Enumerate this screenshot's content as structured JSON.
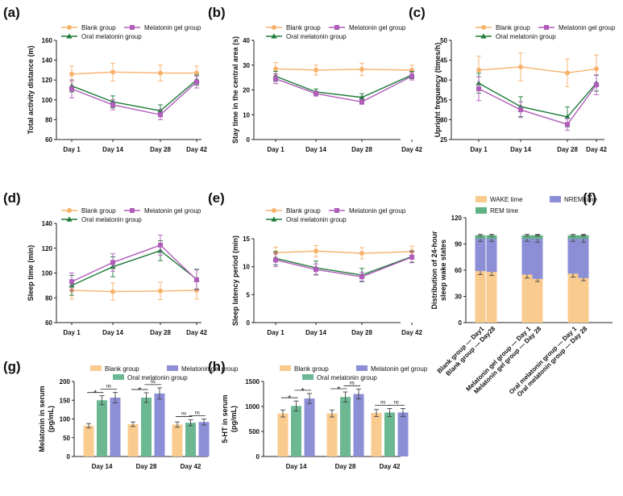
{
  "colors": {
    "blank": "#f6b26b",
    "gel": "#b05cba",
    "oral": "#1e7b3a",
    "wake": "#f9cb8f",
    "nrem": "#8c8fd6",
    "rem": "#62b285",
    "bar_blank": "#f9cb8f",
    "bar_oral": "#6cb893",
    "bar_gel": "#8c8fd6",
    "err": "#444444"
  },
  "chart_data": [
    {
      "panel": "(a)",
      "type": "line",
      "ylabel": "Total activity distance (m)",
      "categories": [
        "Day 1",
        "Day 14",
        "Day 28",
        "Day 42"
      ],
      "ylim": [
        60,
        160
      ],
      "yticks": [
        60,
        80,
        100,
        120,
        140,
        160
      ],
      "legend": [
        "Blank group",
        "Melatonin gel group",
        "Oral melatonin group"
      ],
      "series": [
        {
          "name": "Blank group",
          "key": "blank",
          "marker": "circle",
          "values": [
            126,
            128,
            127,
            127
          ],
          "errors": [
            8,
            9,
            8,
            7
          ]
        },
        {
          "name": "Oral melatonin group",
          "key": "oral",
          "marker": "triangle",
          "values": [
            114,
            98,
            89,
            120
          ],
          "errors": [
            6,
            6,
            6,
            5
          ]
        },
        {
          "name": "Melatonin gel group",
          "key": "gel",
          "marker": "square",
          "values": [
            111,
            95,
            85,
            118
          ],
          "errors": [
            9,
            5,
            5,
            6
          ]
        }
      ]
    },
    {
      "panel": "(b)",
      "type": "line",
      "ylabel": "Stay time in the central area (s)",
      "categories": [
        "Day 1",
        "Day 14",
        "Day 28",
        "Day 42"
      ],
      "ylim": [
        0,
        40
      ],
      "yticks": [
        0,
        10,
        20,
        30,
        40
      ],
      "legend": [
        "Blank group",
        "Melatonin gel group",
        "Oral melatonin group"
      ],
      "series": [
        {
          "name": "Blank group",
          "key": "blank",
          "marker": "circle",
          "values": [
            28.5,
            28,
            28.3,
            28
          ],
          "errors": [
            2.5,
            2,
            2.5,
            2
          ]
        },
        {
          "name": "Oral melatonin group",
          "key": "oral",
          "marker": "triangle",
          "values": [
            25.5,
            19.2,
            17,
            26
          ],
          "errors": [
            2,
            1.2,
            1.5,
            1.5
          ]
        },
        {
          "name": "Melatonin gel group",
          "key": "gel",
          "marker": "square",
          "values": [
            24.5,
            18.5,
            15.2,
            25.5
          ],
          "errors": [
            2,
            1,
            1,
            1.5
          ]
        }
      ]
    },
    {
      "panel": "(c)",
      "type": "line",
      "ylabel": "Upright frequency (times/h)",
      "categories": [
        "Day 1",
        "Day 14",
        "Day 28",
        "Day 42"
      ],
      "ylim": [
        25,
        50
      ],
      "yticks": [
        25,
        30,
        35,
        40,
        45,
        50
      ],
      "legend": [
        "Blank group",
        "Melatonin gel group",
        "Oral melatonin group"
      ],
      "series": [
        {
          "name": "Blank group",
          "key": "blank",
          "marker": "circle",
          "values": [
            42.5,
            43.3,
            41.8,
            42.8
          ],
          "errors": [
            3.5,
            3.5,
            3.5,
            3.5
          ]
        },
        {
          "name": "Oral melatonin group",
          "key": "oral",
          "marker": "triangle",
          "values": [
            39.2,
            33.3,
            30.7,
            39.2
          ],
          "errors": [
            2.5,
            2.5,
            2.5,
            2
          ]
        },
        {
          "name": "Melatonin gel group",
          "key": "gel",
          "marker": "square",
          "values": [
            37.8,
            32.5,
            28.8,
            38.8
          ],
          "errors": [
            3,
            2,
            1.5,
            2.5
          ]
        }
      ]
    },
    {
      "panel": "(d)",
      "type": "line",
      "ylabel": "Sleep time (min)",
      "categories": [
        "Day 1",
        "Day 14",
        "Day 28",
        "Day 42"
      ],
      "ylim": [
        60,
        140
      ],
      "yticks": [
        60,
        80,
        100,
        120,
        140
      ],
      "legend": [
        "Blank group",
        "Melatonin gel group",
        "Oral melatonin group"
      ],
      "series": [
        {
          "name": "Blank group",
          "key": "blank",
          "marker": "circle",
          "values": [
            86,
            85,
            85.5,
            86
          ],
          "errors": [
            7,
            7,
            7,
            7
          ]
        },
        {
          "name": "Oral melatonin group",
          "key": "oral",
          "marker": "triangle",
          "values": [
            90,
            105,
            118,
            95
          ],
          "errors": [
            8,
            8,
            8,
            8
          ]
        },
        {
          "name": "Melatonin gel group",
          "key": "gel",
          "marker": "square",
          "values": [
            93,
            108.5,
            122.5,
            94.5
          ],
          "errors": [
            7,
            7,
            8,
            8
          ]
        }
      ]
    },
    {
      "panel": "(e)",
      "type": "line",
      "ylabel": "Sleep latency period (min)",
      "categories": [
        "Day 1",
        "Day 14",
        "Day 28",
        "Day 42"
      ],
      "ylim": [
        0,
        15
      ],
      "yticks": [
        0,
        5,
        10,
        15
      ],
      "legend": [
        "Blank group",
        "Melatonin gel group",
        "Oral melatonin group"
      ],
      "series": [
        {
          "name": "Blank group",
          "key": "blank",
          "marker": "circle",
          "values": [
            12.5,
            12.8,
            12.4,
            12.7
          ],
          "errors": [
            1,
            1,
            1,
            1
          ]
        },
        {
          "name": "Oral melatonin group",
          "key": "oral",
          "marker": "triangle",
          "values": [
            11.5,
            9.8,
            8.5,
            11.8
          ],
          "errors": [
            1.2,
            1.2,
            1.2,
            1
          ]
        },
        {
          "name": "Melatonin gel group",
          "key": "gel",
          "marker": "square",
          "values": [
            11.2,
            9.5,
            8.2,
            11.7
          ],
          "errors": [
            1.2,
            1,
            0.8,
            1
          ]
        }
      ]
    },
    {
      "panel": "(f)",
      "type": "stacked-bar",
      "ylabel_lines": [
        "Distribution of 24-hour",
        "sleep wake states"
      ],
      "categories": [
        "Blank group — Day1",
        "Blank group — Day28",
        "Melatonin gel group — Day 1",
        "Melatonin gel group — Day 28",
        "Oral melatonin group — Day 1",
        "Oral melatonin group — Day 28"
      ],
      "ylim": [
        0,
        120
      ],
      "yticks": [
        0,
        30,
        60,
        90,
        120
      ],
      "legend": [
        "WAKE time",
        "NREM time",
        "REM time"
      ],
      "series": [
        {
          "name": "WAKE time",
          "key": "wake",
          "values": [
            59,
            58,
            55,
            50,
            56,
            51
          ],
          "errors": [
            4,
            4,
            4,
            3,
            4,
            3
          ]
        },
        {
          "name": "NREM time",
          "key": "nrem",
          "values": [
            37,
            38,
            41,
            46,
            40,
            45
          ],
          "errors": [
            3,
            3,
            3,
            4,
            3,
            4
          ]
        },
        {
          "name": "REM time",
          "key": "rem",
          "values": [
            4,
            4,
            4,
            4,
            4,
            4
          ],
          "errors": [
            1,
            1,
            1,
            1,
            1,
            1
          ]
        }
      ]
    },
    {
      "panel": "(g)",
      "type": "grouped-bar",
      "ylabel_lines": [
        "Melatonin in serum",
        "(pg/mL)"
      ],
      "categories": [
        "Day 14",
        "Day 28",
        "Day 42"
      ],
      "ylim": [
        0,
        200
      ],
      "yticks": [
        0,
        50,
        100,
        150,
        200
      ],
      "legend": [
        "Blank group",
        "Melatonin gel group",
        "Oral melatonin group"
      ],
      "series": [
        {
          "name": "Blank group",
          "key": "bar_blank",
          "values": [
            82,
            86,
            85
          ],
          "errors": [
            6,
            6,
            7
          ]
        },
        {
          "name": "Oral melatonin group",
          "key": "bar_oral",
          "values": [
            150,
            157,
            90
          ],
          "errors": [
            12,
            13,
            8
          ]
        },
        {
          "name": "Melatonin gel group",
          "key": "bar_gel",
          "values": [
            157,
            168,
            92
          ],
          "errors": [
            14,
            15,
            8
          ]
        }
      ],
      "annotations": [
        [
          "*",
          "ns"
        ],
        [
          "*",
          "ns"
        ],
        [
          "ns",
          "ns"
        ]
      ]
    },
    {
      "panel": "(h)",
      "type": "grouped-bar",
      "ylabel_lines": [
        "5-HT in serum",
        "(pg/mL)"
      ],
      "categories": [
        "Day 14",
        "Day 28",
        "Day 42"
      ],
      "ylim": [
        0,
        1500
      ],
      "yticks": [
        0,
        500,
        1000,
        1500
      ],
      "legend": [
        "Blank group",
        "Melatonin gel group",
        "Oral melatonin group"
      ],
      "series": [
        {
          "name": "Blank group",
          "key": "bar_blank",
          "values": [
            860,
            860,
            870
          ],
          "errors": [
            70,
            70,
            70
          ]
        },
        {
          "name": "Oral melatonin group",
          "key": "bar_oral",
          "values": [
            1010,
            1190,
            880
          ],
          "errors": [
            100,
            100,
            80
          ]
        },
        {
          "name": "Melatonin gel group",
          "key": "bar_gel",
          "values": [
            1160,
            1250,
            880
          ],
          "errors": [
            100,
            100,
            80
          ]
        }
      ],
      "annotations": [
        [
          "*",
          "*"
        ],
        [
          "*",
          "ns"
        ],
        [
          "ns",
          "ns"
        ]
      ]
    }
  ]
}
